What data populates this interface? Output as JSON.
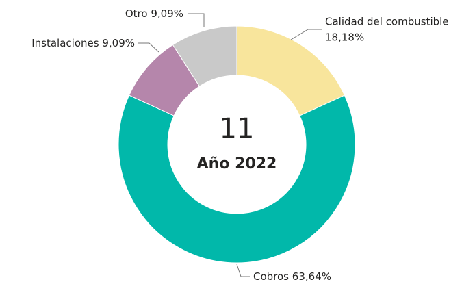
{
  "chart_data": {
    "type": "pie",
    "categories": [
      "Calidad del combustible",
      "Cobros",
      "Instalaciones",
      "Otro"
    ],
    "values": [
      18.18,
      63.64,
      9.09,
      9.09
    ],
    "value_labels": [
      "18,18%",
      "63,64%",
      "9,09%",
      "9,09%"
    ],
    "colors": [
      "#f8e59c",
      "#01b8aa",
      "#b586ab",
      "#c9c9c9"
    ],
    "total": 11,
    "subtitle": "Año 2022"
  }
}
